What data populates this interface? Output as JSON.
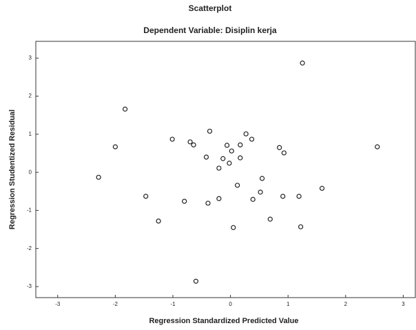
{
  "chart_data": {
    "type": "scatter",
    "title": "Scatterplot",
    "subtitle": "Dependent Variable: Disiplin kerja",
    "x_label": "Regression Standardized Predicted Value",
    "y_label": "Regression Studentized Residual",
    "xlim": [
      -3.38,
      3.21
    ],
    "ylim": [
      -3.29,
      3.44
    ],
    "xticks": [
      -3,
      -2,
      -1,
      0,
      1,
      2,
      3
    ],
    "yticks": [
      -3,
      -2,
      -1,
      0,
      1,
      2,
      3
    ],
    "grid": false,
    "color": "#222222",
    "series": [
      {
        "name": null,
        "color": "#222222",
        "x": [
          1.25,
          -1.83,
          -2.0,
          -2.29,
          -1.01,
          -0.7,
          -0.64,
          -0.36,
          -0.42,
          -0.06,
          0.02,
          -0.13,
          -0.2,
          -0.02,
          0.17,
          0.27,
          0.37,
          0.17,
          0.85,
          0.93,
          2.55,
          0.55,
          0.12,
          0.52,
          0.39,
          0.91,
          1.19,
          1.59,
          -1.47,
          -0.8,
          -0.39,
          -0.2,
          -1.25,
          0.05,
          0.69,
          1.22,
          -0.6
        ],
        "values": [
          2.87,
          1.66,
          0.67,
          -0.13,
          0.87,
          0.8,
          0.72,
          1.08,
          0.4,
          0.71,
          0.56,
          0.36,
          0.11,
          0.24,
          0.72,
          1.01,
          0.87,
          0.38,
          0.65,
          0.51,
          0.67,
          -0.16,
          -0.34,
          -0.52,
          -0.71,
          -0.63,
          -0.63,
          -0.42,
          -0.63,
          -0.76,
          -0.81,
          -0.69,
          -1.28,
          -1.45,
          -1.23,
          -1.43,
          -2.86
        ]
      }
    ]
  }
}
